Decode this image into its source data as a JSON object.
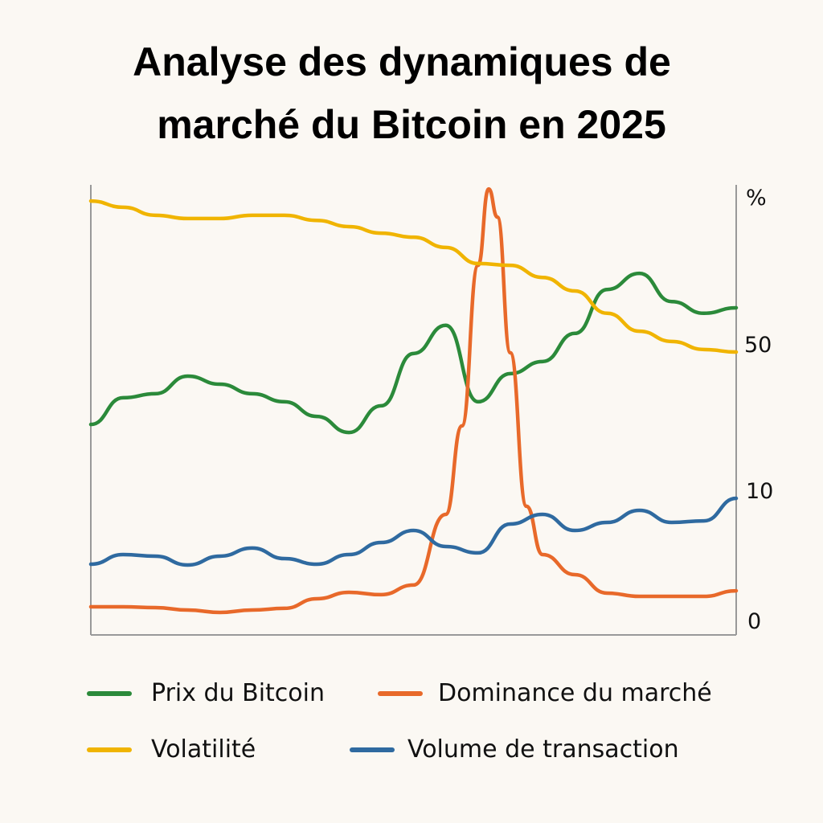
{
  "title_lines": [
    "Analyse des dynamiques de",
    "marché du Bitcoin en 2025"
  ],
  "chart_data": {
    "type": "line",
    "title": "Analyse des dynamiques de marché du Bitcoin en 2025",
    "xlabel": "",
    "ylabel": "%",
    "y_axis_side": "right",
    "y_ticks": [
      "%",
      "50",
      "10",
      "0"
    ],
    "grid": false,
    "legend": "bottom",
    "series": [
      {
        "name": "Prix du Bitcoin",
        "color": "#2b8a3a",
        "points": [
          [
            0,
            28.0
          ],
          [
            1,
            35.3
          ],
          [
            2,
            36.4
          ],
          [
            3,
            41.2
          ],
          [
            4,
            39.0
          ],
          [
            5,
            36.4
          ],
          [
            6,
            34.2
          ],
          [
            7,
            30.2
          ],
          [
            8,
            25.8
          ],
          [
            9,
            33.1
          ],
          [
            10,
            47.4
          ],
          [
            11,
            55.1
          ],
          [
            12,
            34.2
          ],
          [
            13,
            41.9
          ],
          [
            14,
            45.2
          ],
          [
            15,
            52.9
          ],
          [
            16,
            64.9
          ],
          [
            17,
            69.3
          ],
          [
            18,
            61.6
          ],
          [
            19,
            58.4
          ],
          [
            20,
            59.9
          ]
        ]
      },
      {
        "name": "Dominance du marché",
        "color": "#e8692a",
        "points": [
          [
            0,
            1.05
          ],
          [
            1,
            1.05
          ],
          [
            2,
            0.99
          ],
          [
            3,
            0.8
          ],
          [
            4,
            0.62
          ],
          [
            5,
            0.8
          ],
          [
            6,
            0.93
          ],
          [
            7,
            1.67
          ],
          [
            8,
            2.16
          ],
          [
            9,
            1.98
          ],
          [
            10,
            2.72
          ],
          [
            11,
            8.15
          ],
          [
            11.5,
            27.6
          ],
          [
            12,
            71.5
          ],
          [
            12.33,
            92.4
          ],
          [
            12.6,
            84.7
          ],
          [
            13,
            47.6
          ],
          [
            13.5,
            8.77
          ],
          [
            14,
            5.06
          ],
          [
            15,
            3.52
          ],
          [
            16,
            2.1
          ],
          [
            17,
            1.85
          ],
          [
            18,
            1.85
          ],
          [
            19,
            1.85
          ],
          [
            20,
            2.28
          ]
        ]
      },
      {
        "name": "Volatilité",
        "color": "#f0b400",
        "points": [
          [
            0,
            89.1
          ],
          [
            1,
            87.4
          ],
          [
            2,
            85.2
          ],
          [
            3,
            84.3
          ],
          [
            4,
            84.3
          ],
          [
            5,
            85.2
          ],
          [
            6,
            85.2
          ],
          [
            7,
            83.8
          ],
          [
            8,
            82.1
          ],
          [
            9,
            80.3
          ],
          [
            10,
            79.2
          ],
          [
            11,
            76.4
          ],
          [
            12,
            72.0
          ],
          [
            13,
            71.5
          ],
          [
            14,
            68.2
          ],
          [
            15,
            64.5
          ],
          [
            16,
            58.4
          ],
          [
            17,
            53.5
          ],
          [
            18,
            50.7
          ],
          [
            19,
            48.5
          ],
          [
            20,
            47.8
          ]
        ]
      },
      {
        "name": "Volume de transaction",
        "color": "#2f6aa0",
        "points": [
          [
            0,
            4.32
          ],
          [
            1,
            5.06
          ],
          [
            2,
            4.94
          ],
          [
            3,
            4.26
          ],
          [
            4,
            4.94
          ],
          [
            5,
            5.56
          ],
          [
            6,
            4.75
          ],
          [
            7,
            4.32
          ],
          [
            8,
            5.06
          ],
          [
            9,
            5.99
          ],
          [
            10,
            6.91
          ],
          [
            11,
            5.68
          ],
          [
            12,
            5.19
          ],
          [
            13,
            7.41
          ],
          [
            14,
            8.15
          ],
          [
            15,
            6.91
          ],
          [
            16,
            7.53
          ],
          [
            17,
            8.46
          ],
          [
            18,
            7.53
          ],
          [
            19,
            7.65
          ],
          [
            20,
            9.38
          ]
        ]
      }
    ]
  }
}
